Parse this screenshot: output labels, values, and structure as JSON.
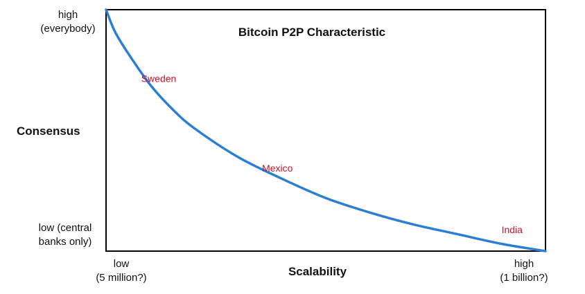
{
  "chart_data": {
    "type": "line",
    "title": "Bitcoin P2P Characteristic",
    "xlabel": "Scalability",
    "ylabel": "Consensus",
    "xticks": [
      {
        "lines": [
          "low",
          "(5 million?)"
        ]
      },
      {
        "lines": [
          "high",
          "(1 billion?)"
        ]
      }
    ],
    "yticks": [
      {
        "lines": [
          "high",
          "(everybody)"
        ]
      },
      {
        "lines": [
          "low (central",
          "banks only)"
        ]
      }
    ],
    "xlim": [
      0,
      1
    ],
    "ylim": [
      0,
      1
    ],
    "grid": false,
    "series": [
      {
        "x": [
          0,
          0.02,
          0.05,
          0.1,
          0.15,
          0.2,
          0.3,
          0.4,
          0.5,
          0.6,
          0.7,
          0.8,
          0.9,
          1.0
        ],
        "y": [
          1.0,
          0.91,
          0.82,
          0.69,
          0.59,
          0.51,
          0.39,
          0.3,
          0.22,
          0.16,
          0.11,
          0.07,
          0.03,
          0.0
        ],
        "color": "#2a7fd4"
      }
    ],
    "annotations": [
      {
        "text": "Sweden",
        "x": 0.08,
        "y": 0.7,
        "color": "#d0102a"
      },
      {
        "text": "Mexico",
        "x": 0.355,
        "y": 0.33,
        "color": "#d0102a"
      },
      {
        "text": "India",
        "x": 0.9,
        "y": 0.075,
        "color": "#d0102a"
      }
    ]
  }
}
